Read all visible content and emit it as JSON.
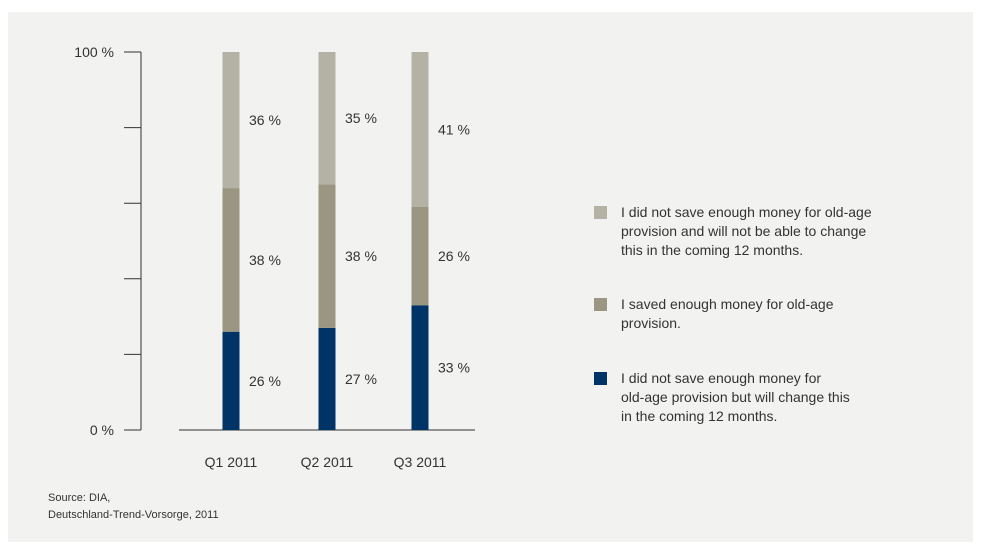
{
  "chart_data": {
    "type": "bar",
    "stacked": true,
    "categories": [
      "Q1 2011",
      "Q2 2011",
      "Q3 2011"
    ],
    "series": [
      {
        "name": "I did not save enough money for old-age provision but will change this in the coming 12 months.",
        "values": [
          26,
          27,
          33
        ],
        "color": "#003366",
        "value_labels": [
          "26 %",
          "27 %",
          "33 %"
        ]
      },
      {
        "name": "I saved enough money for old-age provision.",
        "values": [
          38,
          38,
          26
        ],
        "color": "#9a9682",
        "value_labels": [
          "38 %",
          "38 %",
          "26 %"
        ]
      },
      {
        "name": "I did not save enough money for old-age provision and will not be able to change this in the coming 12 months.",
        "values": [
          36,
          35,
          41
        ],
        "color": "#b4b1a5",
        "value_labels": [
          "36 %",
          "35 %",
          "41 %"
        ]
      }
    ],
    "ylim": [
      0,
      100
    ],
    "y_ticks": [
      0,
      20,
      40,
      60,
      80,
      100
    ],
    "y_tick_labels": [
      "0 %",
      "",
      "",
      "",
      "",
      "100 %"
    ],
    "grid": false,
    "legend_position": "right"
  },
  "legend": {
    "items": [
      {
        "lines": [
          "I did not save enough money for old-age",
          "provision and will not be able to change",
          "this in the coming 12 months."
        ],
        "color": "#b4b1a5"
      },
      {
        "lines": [
          "I saved enough money for old-age",
          "provision."
        ],
        "color": "#9a9682"
      },
      {
        "lines": [
          "I did not save enough money for",
          "old-age provision but will change this",
          "in the coming 12 months."
        ],
        "color": "#003366"
      }
    ]
  },
  "source": {
    "line1": "Source: DIA,",
    "line2": "Deutschland-Trend-Vorsorge, 2011"
  }
}
